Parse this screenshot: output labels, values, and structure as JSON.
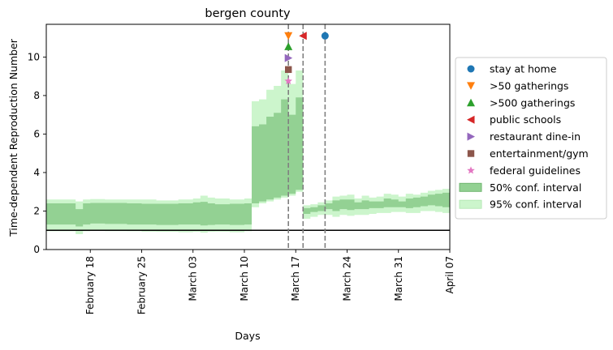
{
  "chart_data": {
    "type": "area",
    "title": "bergen county",
    "xlabel": "Days",
    "ylabel": "Time-dependent Reproduction Number",
    "xlim": [
      "2020-02-12",
      "2020-04-07"
    ],
    "ylim": [
      0,
      11.7
    ],
    "yticks": [
      0,
      2,
      4,
      6,
      8,
      10
    ],
    "xticks": [
      {
        "date": "2020-02-18",
        "label": "February 18"
      },
      {
        "date": "2020-02-25",
        "label": "February 25"
      },
      {
        "date": "2020-03-03",
        "label": "March 03"
      },
      {
        "date": "2020-03-10",
        "label": "March 10"
      },
      {
        "date": "2020-03-17",
        "label": "March 17"
      },
      {
        "date": "2020-03-24",
        "label": "March 24"
      },
      {
        "date": "2020-03-31",
        "label": "March 31"
      },
      {
        "date": "2020-04-07",
        "label": "April 07"
      }
    ],
    "reference_line": 1,
    "band95": {
      "name": "95% conf. interval",
      "color": "#ccf5cc",
      "dates": [
        "2020-02-12",
        "2020-02-16",
        "2020-02-17",
        "2020-02-18",
        "2020-02-20",
        "2020-02-23",
        "2020-02-25",
        "2020-02-27",
        "2020-03-01",
        "2020-03-03",
        "2020-03-04",
        "2020-03-05",
        "2020-03-06",
        "2020-03-08",
        "2020-03-10",
        "2020-03-11",
        "2020-03-12",
        "2020-03-13",
        "2020-03-14",
        "2020-03-15",
        "2020-03-16",
        "2020-03-17",
        "2020-03-18",
        "2020-03-19",
        "2020-03-20",
        "2020-03-21",
        "2020-03-22",
        "2020-03-23",
        "2020-03-24",
        "2020-03-25",
        "2020-03-26",
        "2020-03-27",
        "2020-03-28",
        "2020-03-29",
        "2020-03-30",
        "2020-03-31",
        "2020-04-01",
        "2020-04-02",
        "2020-04-03",
        "2020-04-04",
        "2020-04-05",
        "2020-04-06",
        "2020-04-07"
      ],
      "lower": [
        0.95,
        0.8,
        0.95,
        0.98,
        0.96,
        0.95,
        0.93,
        0.92,
        0.9,
        0.92,
        0.88,
        0.92,
        0.93,
        0.9,
        0.95,
        2.2,
        2.4,
        2.5,
        2.6,
        2.7,
        2.8,
        3.0,
        1.6,
        1.7,
        1.8,
        1.8,
        1.7,
        1.8,
        1.75,
        1.8,
        1.8,
        1.85,
        1.9,
        1.9,
        1.95,
        1.95,
        1.9,
        1.9,
        2.0,
        2.0,
        1.95,
        1.9,
        1.9
      ],
      "upper": [
        2.6,
        2.5,
        2.6,
        2.62,
        2.6,
        2.6,
        2.6,
        2.55,
        2.6,
        2.65,
        2.8,
        2.7,
        2.65,
        2.6,
        2.65,
        7.7,
        7.8,
        8.3,
        8.5,
        9.3,
        8.6,
        9.3,
        2.3,
        2.35,
        2.45,
        2.55,
        2.75,
        2.8,
        2.85,
        2.65,
        2.8,
        2.7,
        2.75,
        2.9,
        2.85,
        2.75,
        2.9,
        2.85,
        2.95,
        3.05,
        3.1,
        3.15,
        3.1
      ]
    },
    "band50": {
      "name": "50% conf. interval",
      "color": "#93d193",
      "dates": [
        "2020-02-12",
        "2020-02-16",
        "2020-02-17",
        "2020-02-18",
        "2020-02-20",
        "2020-02-23",
        "2020-02-25",
        "2020-02-27",
        "2020-03-01",
        "2020-03-03",
        "2020-03-04",
        "2020-03-05",
        "2020-03-06",
        "2020-03-08",
        "2020-03-10",
        "2020-03-11",
        "2020-03-12",
        "2020-03-13",
        "2020-03-14",
        "2020-03-15",
        "2020-03-16",
        "2020-03-17",
        "2020-03-18",
        "2020-03-19",
        "2020-03-20",
        "2020-03-21",
        "2020-03-22",
        "2020-03-23",
        "2020-03-24",
        "2020-03-25",
        "2020-03-26",
        "2020-03-27",
        "2020-03-28",
        "2020-03-29",
        "2020-03-30",
        "2020-03-31",
        "2020-04-01",
        "2020-04-02",
        "2020-04-03",
        "2020-04-04",
        "2020-04-05",
        "2020-04-06",
        "2020-04-07"
      ],
      "lower": [
        1.3,
        1.2,
        1.3,
        1.35,
        1.33,
        1.3,
        1.3,
        1.28,
        1.3,
        1.3,
        1.25,
        1.28,
        1.3,
        1.28,
        1.3,
        2.4,
        2.5,
        2.6,
        2.7,
        2.8,
        2.9,
        3.1,
        1.85,
        1.95,
        2.0,
        2.1,
        2.0,
        2.1,
        2.05,
        2.1,
        2.1,
        2.15,
        2.15,
        2.2,
        2.2,
        2.2,
        2.15,
        2.2,
        2.25,
        2.3,
        2.25,
        2.2,
        2.2
      ],
      "upper": [
        2.4,
        2.1,
        2.4,
        2.42,
        2.42,
        2.4,
        2.38,
        2.38,
        2.4,
        2.45,
        2.48,
        2.4,
        2.35,
        2.38,
        2.4,
        6.4,
        6.5,
        6.9,
        7.1,
        7.8,
        7.0,
        7.9,
        2.15,
        2.2,
        2.3,
        2.4,
        2.55,
        2.6,
        2.6,
        2.45,
        2.55,
        2.5,
        2.5,
        2.65,
        2.6,
        2.5,
        2.65,
        2.7,
        2.75,
        2.85,
        2.9,
        2.95,
        2.9
      ]
    },
    "interventions": [
      {
        "name": "stay at home",
        "date": "2020-03-21",
        "y": 11.1,
        "marker": "circle",
        "color": "#1f77b4"
      },
      {
        "name": ">50 gatherings",
        "date": "2020-03-16",
        "y": 11.1,
        "marker": "triangle-down",
        "color": "#ff7f0e"
      },
      {
        "name": ">500 gatherings",
        "date": "2020-03-16",
        "y": 10.55,
        "marker": "triangle-up",
        "color": "#2ca02c"
      },
      {
        "name": "public schools",
        "date": "2020-03-18",
        "y": 11.1,
        "marker": "triangle-left",
        "color": "#d62728"
      },
      {
        "name": "restaurant dine-in",
        "date": "2020-03-16",
        "y": 9.95,
        "marker": "triangle-right",
        "color": "#9467bd"
      },
      {
        "name": "entertainment/gym",
        "date": "2020-03-16",
        "y": 9.35,
        "marker": "square",
        "color": "#8c564b"
      },
      {
        "name": "federal guidelines",
        "date": "2020-03-16",
        "y": 8.75,
        "marker": "star",
        "color": "#e377c2"
      }
    ],
    "vlines": [
      "2020-03-16",
      "2020-03-18",
      "2020-03-21"
    ],
    "legend_position": "right, outside plot"
  }
}
